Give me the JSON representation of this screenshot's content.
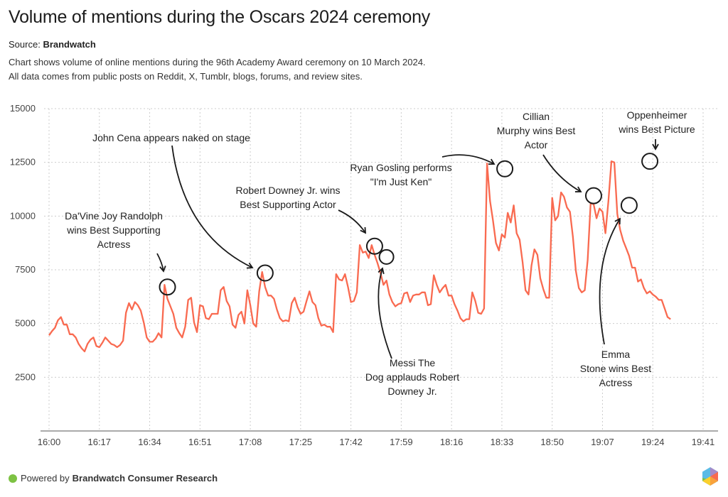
{
  "header": {
    "title": "Volume of mentions during the Oscars 2024 ceremony",
    "source_label": "Source:",
    "source_name": "Brandwatch",
    "description_line1": "Chart shows volume of online mentions during the 96th Academy Award ceremony on 10 March 2024.",
    "description_line2": "All data comes from public posts on Reddit, X, Tumblr, blogs, forums, and review sites."
  },
  "footer": {
    "powered_by": "Powered by",
    "brand": "Brandwatch Consumer Research",
    "icon": "green-dot-icon",
    "logo_icon": "brandwatch-hexagon-logo-icon"
  },
  "colors": {
    "line": "#f96a50",
    "annotation": "#1a1a1a",
    "grid": "#cccccc",
    "footer_dot": "#7dc243"
  },
  "chart_data": {
    "type": "line",
    "title": "Volume of mentions during the Oscars 2024 ceremony",
    "xlabel": "",
    "ylabel": "",
    "ylim": [
      0,
      15000
    ],
    "yticks": [
      2500,
      5000,
      7500,
      10000,
      12500,
      15000
    ],
    "xtick_labels": [
      "16:00",
      "16:17",
      "16:34",
      "16:51",
      "17:08",
      "17:25",
      "17:42",
      "17:59",
      "18:16",
      "18:33",
      "18:50",
      "19:07",
      "19:24",
      "19:41"
    ],
    "x_start_minute": 0,
    "x_tick_step_minutes": 17,
    "x_end_minute": 226,
    "grid": true,
    "series": [
      {
        "name": "Mentions",
        "x_minutes_step": 1,
        "values": [
          4450,
          4650,
          4800,
          5150,
          5300,
          4950,
          4950,
          4500,
          4500,
          4350,
          4050,
          3850,
          3700,
          4050,
          4250,
          4350,
          3950,
          3900,
          4100,
          4350,
          4200,
          4050,
          4000,
          3900,
          4000,
          4200,
          5500,
          5950,
          5650,
          6000,
          5850,
          5600,
          5050,
          4350,
          4150,
          4150,
          4300,
          4550,
          4350,
          6800,
          6150,
          5800,
          5450,
          4800,
          4550,
          4350,
          4850,
          6100,
          6200,
          5050,
          4600,
          5850,
          5800,
          5250,
          5200,
          5450,
          5450,
          5450,
          6550,
          6700,
          6050,
          5800,
          4950,
          4800,
          5400,
          5550,
          5000,
          6550,
          5850,
          5000,
          4850,
          6500,
          7400,
          6700,
          6300,
          6300,
          6150,
          5650,
          5250,
          5100,
          5150,
          5100,
          5950,
          6200,
          5750,
          5450,
          5550,
          6050,
          6500,
          6000,
          5850,
          5250,
          4900,
          4950,
          4850,
          4850,
          4600,
          7300,
          7050,
          7000,
          7300,
          6700,
          6000,
          6050,
          6450,
          8650,
          8300,
          8350,
          8050,
          8650,
          8200,
          7800,
          7350,
          6800,
          7000,
          6350,
          6000,
          5800,
          5900,
          5950,
          6400,
          6450,
          6000,
          6300,
          6350,
          6350,
          6450,
          6450,
          5850,
          5900,
          7250,
          6800,
          6450,
          6650,
          6800,
          6300,
          6300,
          5900,
          5600,
          5250,
          5100,
          5200,
          5200,
          6450,
          6050,
          5500,
          5450,
          5700,
          12450,
          10700,
          9800,
          8750,
          8400,
          9150,
          9000,
          10150,
          9700,
          10500,
          9200,
          8900,
          7850,
          6550,
          6350,
          7700,
          8450,
          8200,
          7100,
          6600,
          6200,
          6200,
          10850,
          9800,
          10000,
          11100,
          10900,
          10400,
          10200,
          9050,
          7450,
          6650,
          6450,
          6550,
          7950,
          10600,
          10550,
          9900,
          10350,
          10200,
          9200,
          10700,
          12550,
          12500,
          10100,
          9350,
          8850,
          8500,
          8150,
          7600,
          7600,
          6950,
          7050,
          6650,
          6400,
          6500,
          6350,
          6250,
          6100,
          6100,
          5700,
          5300,
          5200
        ]
      }
    ],
    "annotations": [
      {
        "text": [
          "Da'Vine Joy Randolph",
          "wins Best Supporting",
          "Actress"
        ],
        "minute": 40,
        "value": 6700
      },
      {
        "text": [
          "John Cena appears naked on stage"
        ],
        "minute": 73,
        "value": 7350
      },
      {
        "text": [
          "Robert Downey Jr. wins",
          "Best Supporting Actor"
        ],
        "minute": 110,
        "value": 8600
      },
      {
        "text": [
          "Messi The",
          "Dog applauds Robert",
          "Downey Jr."
        ],
        "minute": 114,
        "value": 8100
      },
      {
        "text": [
          "Ryan Gosling performs",
          "\"I'm Just Ken\""
        ],
        "minute": 154,
        "value": 12200
      },
      {
        "text": [
          "Cillian",
          "Murphy wins Best",
          "Actor"
        ],
        "minute": 184,
        "value": 10950
      },
      {
        "text": [
          "Emma",
          "Stone wins Best",
          "Actress"
        ],
        "minute": 196,
        "value": 10500
      },
      {
        "text": [
          "Oppenheimer",
          "wins Best Picture"
        ],
        "minute": 203,
        "value": 12550
      }
    ]
  }
}
